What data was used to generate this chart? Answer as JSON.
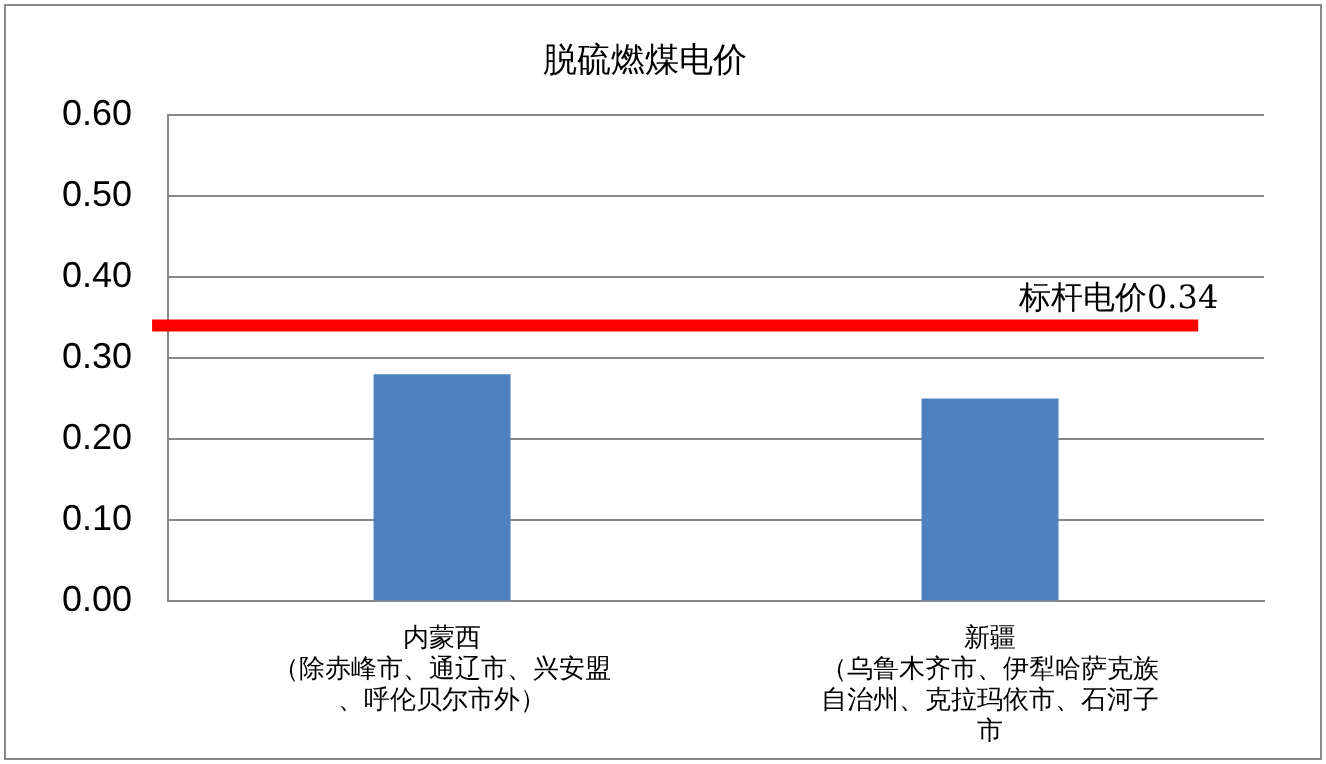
{
  "chart_data": {
    "type": "bar",
    "title": "脱硫燃煤电价",
    "categories": [
      "内蒙西（除赤峰市、通辽市、兴安盟、呼伦贝尔市外）",
      "新疆（乌鲁木齐市、伊犁哈萨克族自治州、克拉玛依市、石河子市"
    ],
    "values": [
      0.28,
      0.25
    ],
    "color": "#4f81bd",
    "ylim": [
      0,
      0.6
    ],
    "yticks": [
      {
        "value": 0,
        "label": "0.00"
      },
      {
        "value": 0.1,
        "label": "0.10"
      },
      {
        "value": 0.2,
        "label": "0.20"
      },
      {
        "value": 0.3,
        "label": "0.30"
      },
      {
        "value": 0.4,
        "label": "0.40"
      },
      {
        "value": 0.5,
        "label": "0.50"
      },
      {
        "value": 0.6,
        "label": "0.60"
      }
    ],
    "grid": "y",
    "ref_lines": [
      {
        "axis": "y",
        "value": 0.34,
        "label": "标杆电价0.34",
        "color": "#ff0000"
      }
    ]
  }
}
